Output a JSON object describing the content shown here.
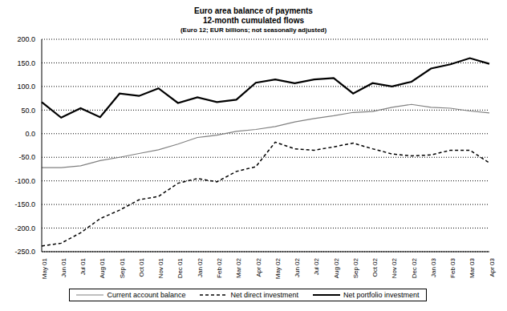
{
  "chart_data": {
    "type": "line",
    "title": "Euro area balance of payments",
    "subtitle": [
      "12-month cumulated flows",
      "(Euro 12; EUR billions; not seasonally adjusted)"
    ],
    "categories": [
      "May 01",
      "Jun 01",
      "Jul 01",
      "Aug 01",
      "Sep 01",
      "Oct 01",
      "Nov 01",
      "Dec 01",
      "Jan 02",
      "Feb 02",
      "Mar 02",
      "Apr 02",
      "May 02",
      "Jun 02",
      "Jul 02",
      "Aug 02",
      "Sep 02",
      "Oct 02",
      "Nov 02",
      "Dec 02",
      "Jan 03",
      "Feb 03",
      "Mar 03",
      "Apr 03"
    ],
    "series": [
      {
        "name": "Current account balance",
        "color": "#808080",
        "line_style": "solid",
        "values": [
          -72,
          -72,
          -68,
          -57,
          -50,
          -42,
          -34,
          -22,
          -8,
          -3,
          5,
          9,
          15,
          25,
          32,
          38,
          45,
          47,
          56,
          62,
          56,
          54,
          48,
          44
        ]
      },
      {
        "name": "Net direct investment",
        "color": "#000000",
        "line_style": "dashed",
        "values": [
          -238,
          -232,
          -210,
          -180,
          -162,
          -140,
          -133,
          -105,
          -95,
          -102,
          -80,
          -70,
          -18,
          -32,
          -35,
          -28,
          -20,
          -32,
          -43,
          -47,
          -45,
          -35,
          -35,
          -62
        ]
      },
      {
        "name": "Net portfolio investment",
        "color": "#000000",
        "line_style": "solid",
        "values": [
          67,
          34,
          54,
          35,
          85,
          80,
          96,
          65,
          77,
          67,
          72,
          108,
          115,
          107,
          115,
          118,
          85,
          107,
          100,
          110,
          138,
          147,
          160,
          148
        ]
      }
    ],
    "ylim": [
      -250,
      200
    ],
    "yticks": [
      {
        "value": -250,
        "label": "-250.0"
      },
      {
        "value": -200,
        "label": "-200.0"
      },
      {
        "value": -150,
        "label": "-150.0"
      },
      {
        "value": -100,
        "label": "-100.0"
      },
      {
        "value": -50,
        "label": "-50.0"
      },
      {
        "value": 0,
        "label": "0.0"
      },
      {
        "value": 50,
        "label": "50.0"
      },
      {
        "value": 100,
        "label": "100.0"
      },
      {
        "value": 150,
        "label": "150.0"
      },
      {
        "value": 200,
        "label": "200.0"
      }
    ],
    "grid": true,
    "legend": "bottom"
  }
}
